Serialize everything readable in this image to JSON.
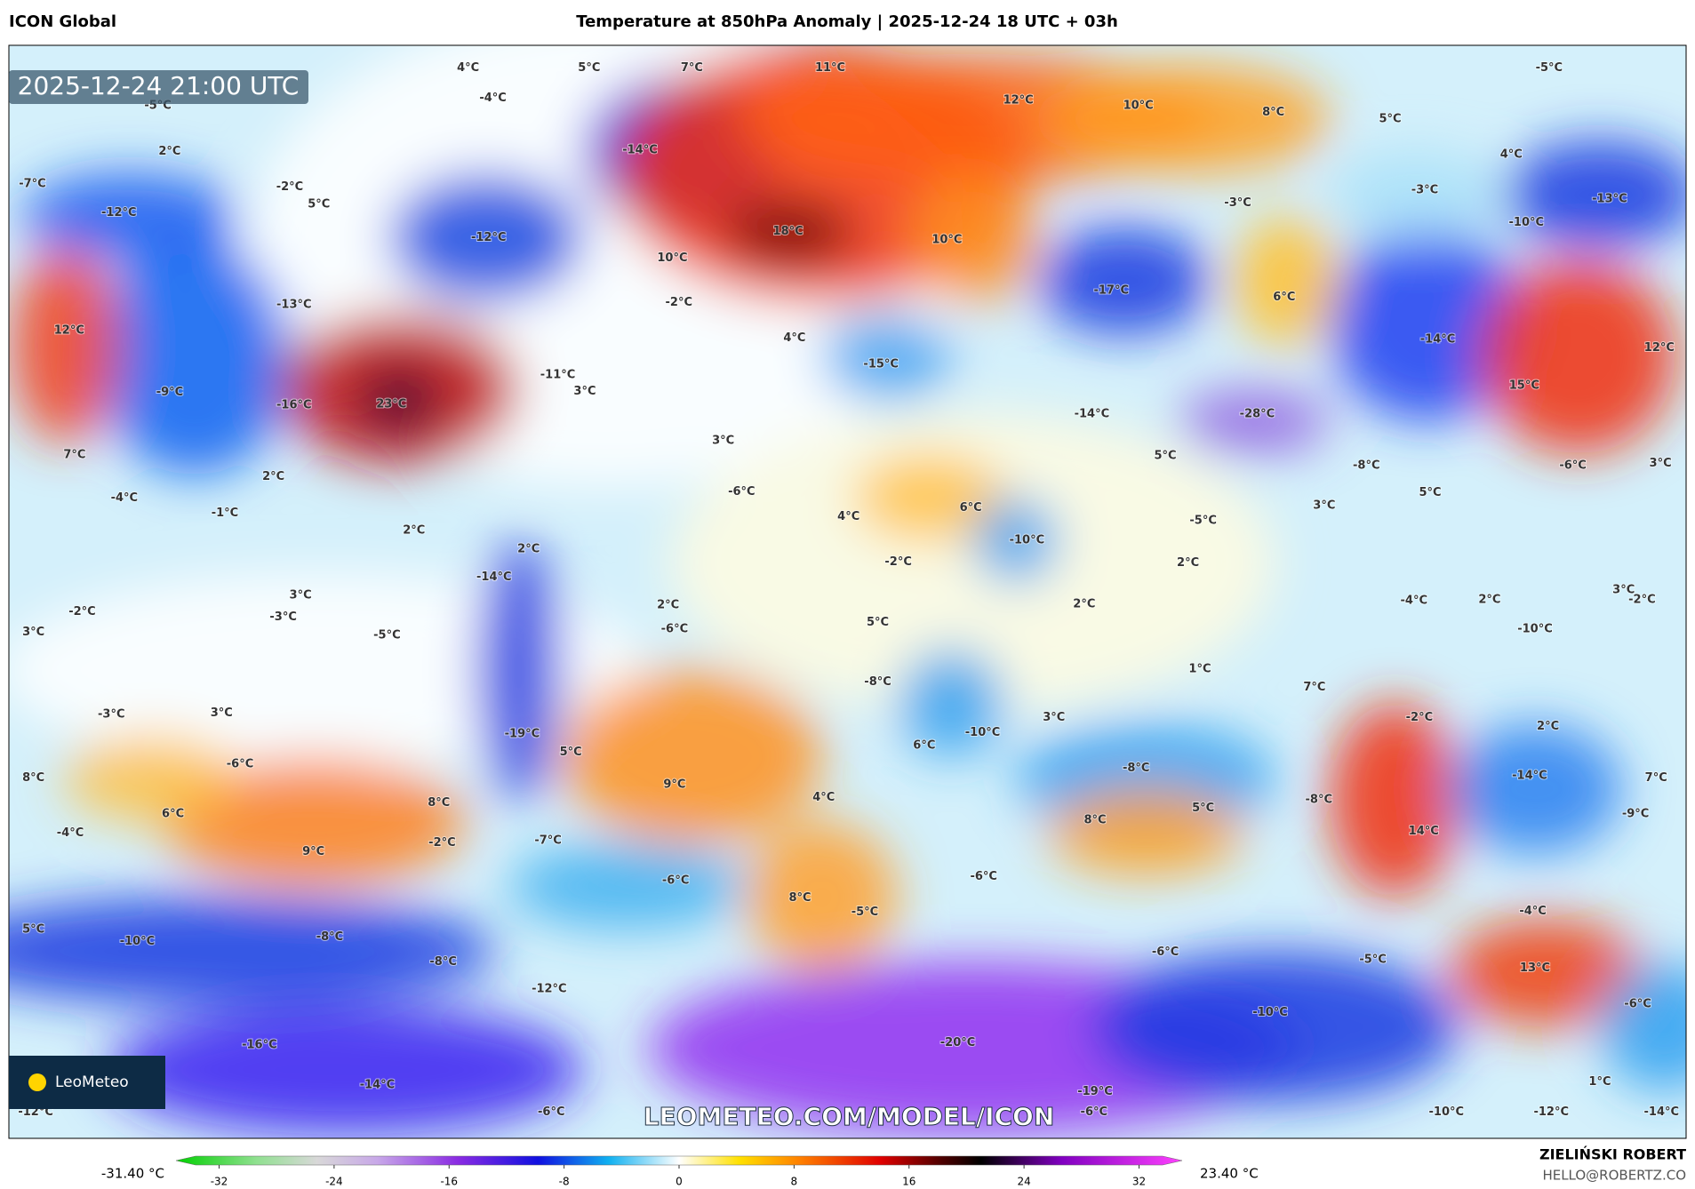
{
  "header": {
    "left": "ICON Global",
    "title": "Temperature at 850hPa Anomaly | 2025-12-24 18 UTC + 03h"
  },
  "map": {
    "timestamp": "2025-12-24 21:00 UTC",
    "watermark": "LEOMETEO.COM/MODEL/ICON",
    "logo": "LeoMeteo",
    "labels": [
      "2°C",
      "-12°C",
      "12°C",
      "-9°C",
      "7°C",
      "-13°C",
      "-16°C",
      "23°C",
      "-11°C",
      "3°C",
      "-14°C",
      "-12°C",
      "10°C",
      "-2°C",
      "18°C",
      "11°C",
      "12°C",
      "10°C",
      "8°C",
      "5°C",
      "-5°C",
      "-13°C",
      "-10°C",
      "-17°C",
      "6°C",
      "-14°C",
      "12°C",
      "15°C",
      "-28°C",
      "10°C",
      "4°C",
      "-15°C",
      "3°C",
      "-6°C",
      "4°C",
      "6°C",
      "-10°C",
      "-2°C",
      "-14°C",
      "5°C",
      "-8°C",
      "-6°C",
      "3°C",
      "5°C",
      "-5°C",
      "2°C",
      "2°C",
      "1°C",
      "7°C",
      "-2°C",
      "2°C",
      "-14°C",
      "7°C",
      "-9°C",
      "14°C",
      "-8°C",
      "-8°C",
      "5°C",
      "8°C",
      "-6°C",
      "-5°C",
      "8°C",
      "4°C",
      "9°C",
      "-6°C",
      "-6°C",
      "-5°C",
      "13°C",
      "-4°C",
      "-10°C",
      "-20°C",
      "-19°C",
      "-14°C",
      "-16°C",
      "-12°C",
      "-8°C",
      "-8°C",
      "-10°C",
      "5°C",
      "9°C",
      "-2°C",
      "8°C",
      "-7°C",
      "6°C",
      "-4°C",
      "8°C",
      "-6°C",
      "3°C",
      "-3°C",
      "5°C",
      "-19°C",
      "-5°C",
      "3°C",
      "-3°C",
      "-2°C",
      "3°C",
      "-8°C",
      "5°C",
      "-6°C",
      "2°C",
      "-10°C",
      "6°C",
      "3°C",
      "-14°C",
      "2°C",
      "2°C",
      "2°C",
      "-1°C",
      "-4°C",
      "-7°C",
      "-6°C",
      "-10°C",
      "-12°C",
      "-14°C",
      "1°C",
      "-6°C",
      "-12°C",
      "-6°C",
      "5°C",
      "7°C",
      "4°C",
      "-4°C",
      "-5°C",
      "-2°C",
      "5°C",
      "-3°C",
      "-3°C",
      "4°C",
      "-4°C",
      "2°C",
      "-10°C",
      "3°C",
      "-2°C",
      "3°C"
    ]
  },
  "colorbar": {
    "min_label": "-31.40 °C",
    "max_label": "23.40 °C",
    "lim": [
      -35,
      35
    ],
    "ticks": [
      -32,
      -24,
      -16,
      -8,
      0,
      8,
      16,
      24,
      32
    ]
  },
  "footer": {
    "author": "ZIELIŃSKI ROBERT",
    "email": "HELLO@ROBERTZ.CO"
  }
}
